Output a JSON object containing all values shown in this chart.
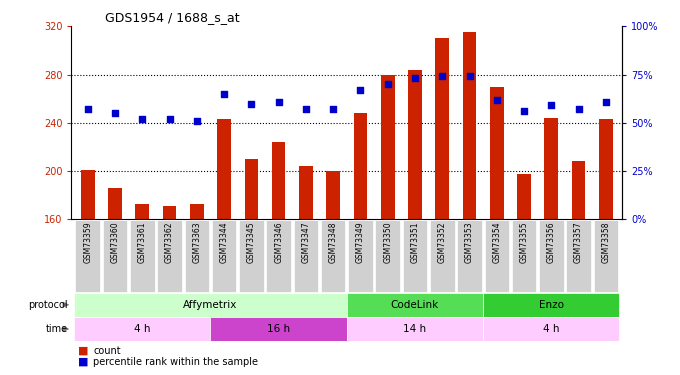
{
  "title": "GDS1954 / 1688_s_at",
  "samples": [
    "GSM73359",
    "GSM73360",
    "GSM73361",
    "GSM73362",
    "GSM73363",
    "GSM73344",
    "GSM73345",
    "GSM73346",
    "GSM73347",
    "GSM73348",
    "GSM73349",
    "GSM73350",
    "GSM73351",
    "GSM73352",
    "GSM73353",
    "GSM73354",
    "GSM73355",
    "GSM73356",
    "GSM73357",
    "GSM73358"
  ],
  "counts": [
    201,
    186,
    173,
    171,
    173,
    243,
    210,
    224,
    204,
    200,
    248,
    280,
    284,
    310,
    315,
    270,
    198,
    244,
    208,
    243
  ],
  "percentiles": [
    57,
    55,
    52,
    52,
    51,
    65,
    60,
    61,
    57,
    57,
    67,
    70,
    73,
    74,
    74,
    62,
    56,
    59,
    57,
    61
  ],
  "ylim_left": [
    160,
    320
  ],
  "ylim_right": [
    0,
    100
  ],
  "yticks_left": [
    160,
    200,
    240,
    280,
    320
  ],
  "yticks_right": [
    0,
    25,
    50,
    75,
    100
  ],
  "bar_color": "#cc2200",
  "dot_color": "#0000cc",
  "bg_color": "#ffffff",
  "label_bg": "#d0d0d0",
  "protocol_groups": [
    {
      "label": "Affymetrix",
      "start": 0,
      "end": 10,
      "color": "#ccffcc"
    },
    {
      "label": "CodeLink",
      "start": 10,
      "end": 15,
      "color": "#55dd55"
    },
    {
      "label": "Enzo",
      "start": 15,
      "end": 20,
      "color": "#33cc33"
    }
  ],
  "time_groups": [
    {
      "label": "4 h",
      "start": 0,
      "end": 5,
      "color": "#ffccff"
    },
    {
      "label": "16 h",
      "start": 5,
      "end": 10,
      "color": "#cc44cc"
    },
    {
      "label": "14 h",
      "start": 10,
      "end": 15,
      "color": "#ffccff"
    },
    {
      "label": "4 h",
      "start": 15,
      "end": 20,
      "color": "#ffccff"
    }
  ]
}
